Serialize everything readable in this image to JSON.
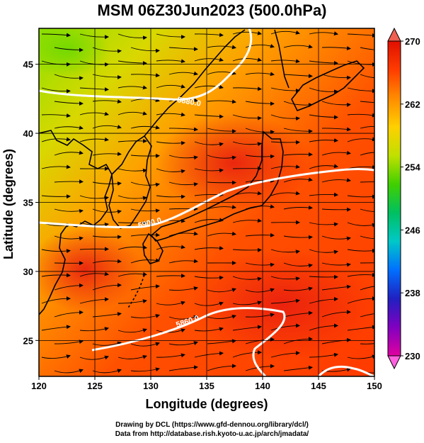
{
  "title": "MSM 06Z30Jun2023 (500.0hPa)",
  "axes": {
    "xlabel": "Longitude (degrees)",
    "ylabel": "Latitude  (degrees)",
    "x_ticks": [
      "120",
      "125",
      "130",
      "135",
      "140",
      "145",
      "150"
    ],
    "y_ticks": [
      "25",
      "30",
      "35",
      "40",
      "45"
    ],
    "x_range": [
      120,
      150
    ],
    "y_range": [
      22.4,
      47.6
    ]
  },
  "colorbar": {
    "min": 230,
    "max": 270,
    "ticks": [
      "230",
      "238",
      "246",
      "254",
      "262",
      "270"
    ],
    "colors": [
      "#e000a0",
      "#8000c0",
      "#2020c0",
      "#0070ff",
      "#00c8c8",
      "#00c060",
      "#40d000",
      "#c0e000",
      "#ffd000",
      "#ff8c00",
      "#ff3c00",
      "#e01000"
    ]
  },
  "contours": [
    {
      "label": "5880.0"
    },
    {
      "label": "5900.0"
    },
    {
      "label": "5860.0"
    }
  ],
  "credits": {
    "line1": "Drawing by DCL (https://www.gfd-dennou.org/library/dcl/)",
    "line2": "Data from http://database.rish.kyoto-u.ac.jp/arch/jmadata/"
  }
}
